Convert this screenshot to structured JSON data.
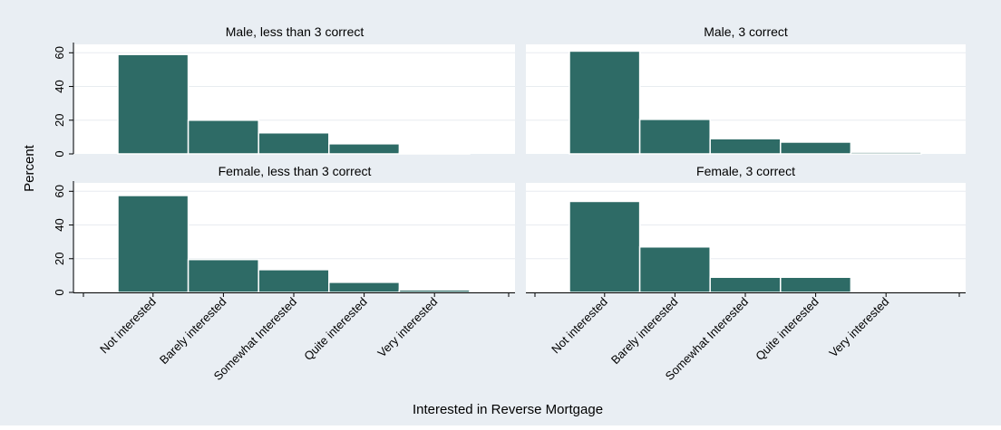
{
  "chart_data": {
    "type": "bar",
    "ylabel": "Percent",
    "xlabel": "Interested in Reverse Mortgage",
    "categories": [
      "Not interested",
      "Barely interested",
      "Somewhat Interested",
      "Quite interested",
      "Very interested"
    ],
    "ylim": [
      0,
      65
    ],
    "yticks": [
      0,
      20,
      40,
      60
    ],
    "grid": true,
    "colors": {
      "bar": "#2e6b66",
      "panel_header": "#e9eef3",
      "background": "#e9eef3",
      "plot": "#ffffff",
      "grid": "#e8ecf0"
    },
    "panels": [
      {
        "title": "Male, less than 3 correct",
        "values": [
          59,
          20,
          12.5,
          6,
          0.8
        ]
      },
      {
        "title": "Male, 3 correct",
        "values": [
          61,
          20.5,
          9,
          7,
          1
        ]
      },
      {
        "title": "Female, less than 3 correct",
        "values": [
          57.5,
          19.5,
          13.5,
          6,
          1.5
        ]
      },
      {
        "title": "Female, 3 correct",
        "values": [
          54,
          27,
          9,
          9,
          0
        ]
      }
    ]
  }
}
